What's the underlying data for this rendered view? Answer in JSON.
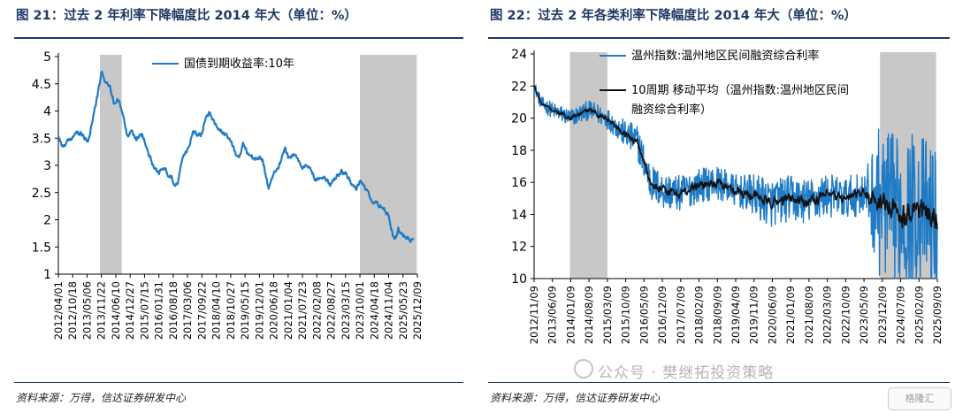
{
  "left_panel": {
    "title": "图 21：过去 2 年利率下降幅度比 2014 年大（单位：%）",
    "source": "资料来源：万得，信达证券研发中心"
  },
  "right_panel": {
    "title": "图 22：过去 2 年各类利率下降幅度比 2014 年大（单位：%）",
    "source": "资料来源：万得，信达证券研发中心"
  },
  "watermark": {
    "text": "公众号 · 樊继拓投资策略",
    "badge": "格隆汇"
  },
  "colors": {
    "series_blue": "#1f7bc6",
    "series_black": "#111111",
    "shade": "#c8c8c8",
    "title": "#1f3864"
  },
  "chart_data": [
    {
      "type": "line",
      "legend_position": "top-right",
      "xlabel": "",
      "ylabel": "",
      "ylim": [
        1,
        5
      ],
      "yticks": [
        "1",
        "1.5",
        "2",
        "2.5",
        "3",
        "3.5",
        "4",
        "4.5",
        "5"
      ],
      "xticks": [
        "2012/04/01",
        "2012/10/18",
        "2013/05/06",
        "2013/11/22",
        "2014/06/10",
        "2014/12/27",
        "2015/07/15",
        "2016/01/31",
        "2016/08/18",
        "2017/03/06",
        "2017/09/22",
        "2018/04/10",
        "2018/10/27",
        "2019/05/15",
        "2019/12/01",
        "2020/06/18",
        "2021/01/04",
        "2021/07/23",
        "2022/02/08",
        "2022/08/27",
        "2023/03/15",
        "2023/10/01",
        "2024/04/18",
        "2024/11/04",
        "2025/05/23",
        "2025/12/09"
      ],
      "x_range": [
        "2012-04-01",
        "2025-12-09"
      ],
      "shaded_periods": [
        [
          "2013-11-01",
          "2014-09-01"
        ],
        [
          "2023-10-01",
          "2025-12-01"
        ]
      ],
      "series": [
        {
          "name": "国债到期收益率:10年",
          "points": [
            [
              "2012-04-01",
              3.55
            ],
            [
              "2012-06-01",
              3.35
            ],
            [
              "2012-09-01",
              3.45
            ],
            [
              "2012-12-01",
              3.6
            ],
            [
              "2013-03-01",
              3.55
            ],
            [
              "2013-05-15",
              3.42
            ],
            [
              "2013-08-01",
              3.9
            ],
            [
              "2013-10-01",
              4.3
            ],
            [
              "2013-11-25",
              4.7
            ],
            [
              "2014-01-15",
              4.55
            ],
            [
              "2014-03-15",
              4.45
            ],
            [
              "2014-05-15",
              4.15
            ],
            [
              "2014-07-15",
              4.2
            ],
            [
              "2014-09-15",
              3.95
            ],
            [
              "2014-11-15",
              3.55
            ],
            [
              "2014-12-31",
              3.65
            ],
            [
              "2015-03-15",
              3.5
            ],
            [
              "2015-06-15",
              3.55
            ],
            [
              "2015-09-15",
              3.2
            ],
            [
              "2015-11-15",
              3.0
            ],
            [
              "2016-01-31",
              2.85
            ],
            [
              "2016-04-15",
              2.95
            ],
            [
              "2016-07-15",
              2.8
            ],
            [
              "2016-08-18",
              2.7
            ],
            [
              "2016-10-20",
              2.65
            ],
            [
              "2016-12-20",
              3.15
            ],
            [
              "2017-03-06",
              3.3
            ],
            [
              "2017-05-20",
              3.6
            ],
            [
              "2017-07-20",
              3.55
            ],
            [
              "2017-09-22",
              3.6
            ],
            [
              "2017-11-20",
              3.95
            ],
            [
              "2018-01-10",
              3.98
            ],
            [
              "2018-03-15",
              3.8
            ],
            [
              "2018-06-01",
              3.65
            ],
            [
              "2018-08-15",
              3.55
            ],
            [
              "2018-10-27",
              3.45
            ],
            [
              "2018-12-31",
              3.25
            ],
            [
              "2019-02-15",
              3.12
            ],
            [
              "2019-04-20",
              3.4
            ],
            [
              "2019-06-15",
              3.25
            ],
            [
              "2019-09-15",
              3.1
            ],
            [
              "2019-12-01",
              3.15
            ],
            [
              "2020-01-20",
              3.1
            ],
            [
              "2020-04-10",
              2.55
            ],
            [
              "2020-06-18",
              2.85
            ],
            [
              "2020-08-15",
              2.95
            ],
            [
              "2020-11-20",
              3.3
            ],
            [
              "2021-01-04",
              3.15
            ],
            [
              "2021-04-15",
              3.2
            ],
            [
              "2021-07-23",
              2.95
            ],
            [
              "2021-10-15",
              3.0
            ],
            [
              "2022-01-15",
              2.75
            ],
            [
              "2022-04-15",
              2.8
            ],
            [
              "2022-08-27",
              2.65
            ],
            [
              "2022-11-20",
              2.85
            ],
            [
              "2023-01-15",
              2.9
            ],
            [
              "2023-03-15",
              2.85
            ],
            [
              "2023-06-15",
              2.65
            ],
            [
              "2023-08-20",
              2.58
            ],
            [
              "2023-10-01",
              2.7
            ],
            [
              "2023-12-15",
              2.6
            ],
            [
              "2024-02-15",
              2.4
            ],
            [
              "2024-04-18",
              2.3
            ],
            [
              "2024-07-15",
              2.25
            ],
            [
              "2024-09-15",
              2.15
            ],
            [
              "2024-11-04",
              2.1
            ],
            [
              "2024-12-31",
              1.7
            ],
            [
              "2025-02-15",
              1.65
            ],
            [
              "2025-03-20",
              1.85
            ],
            [
              "2025-05-23",
              1.68
            ],
            [
              "2025-07-15",
              1.7
            ],
            [
              "2025-09-01",
              1.62
            ],
            [
              "2025-10-15",
              1.65
            ]
          ]
        }
      ]
    },
    {
      "type": "line",
      "legend_position": "top-right",
      "xlabel": "",
      "ylabel": "",
      "ylim": [
        10,
        24
      ],
      "yticks": [
        "10",
        "12",
        "14",
        "16",
        "18",
        "20",
        "22",
        "24"
      ],
      "xticks": [
        "2012/11/09",
        "2013/06/09",
        "2014/01/09",
        "2014/08/09",
        "2015/03/09",
        "2015/10/09",
        "2016/05/09",
        "2016/12/09",
        "2017/07/09",
        "2018/02/09",
        "2018/09/09",
        "2019/04/09",
        "2019/11/09",
        "2020/06/09",
        "2021/01/09",
        "2021/08/09",
        "2022/03/09",
        "2022/10/09",
        "2023/05/09",
        "2023/12/09",
        "2024/07/09",
        "2025/02/09",
        "2025/09/09"
      ],
      "x_range": [
        "2012-11-09",
        "2025-09-30"
      ],
      "shaded_periods": [
        [
          "2014-01-01",
          "2015-03-15"
        ],
        [
          "2023-12-01",
          "2025-09-15"
        ]
      ],
      "series": [
        {
          "name": "温州指数:温州地区民间融资综合利率",
          "style": "noisy",
          "points": [
            [
              "2012-11-09",
              22.0
            ],
            [
              "2013-02-01",
              20.9
            ],
            [
              "2013-06-09",
              20.5
            ],
            [
              "2014-01-09",
              20.0
            ],
            [
              "2014-08-09",
              20.5
            ],
            [
              "2015-03-09",
              20.0
            ],
            [
              "2015-10-09",
              19.0
            ],
            [
              "2016-03-01",
              18.5
            ],
            [
              "2016-08-01",
              16.0
            ],
            [
              "2016-12-09",
              15.5
            ],
            [
              "2017-07-09",
              15.3
            ],
            [
              "2018-02-09",
              15.8
            ],
            [
              "2018-09-09",
              16.0
            ],
            [
              "2019-04-09",
              15.5
            ],
            [
              "2019-11-09",
              15.2
            ],
            [
              "2020-06-09",
              14.7
            ],
            [
              "2021-01-09",
              15.0
            ],
            [
              "2021-08-09",
              14.8
            ],
            [
              "2022-03-09",
              15.2
            ],
            [
              "2022-10-09",
              15.0
            ],
            [
              "2023-05-09",
              15.3
            ],
            [
              "2023-12-09",
              14.8
            ],
            [
              "2024-07-09",
              14.0
            ],
            [
              "2025-02-09",
              14.5
            ],
            [
              "2025-09-09",
              13.5
            ]
          ],
          "amplitude_points": [
            [
              "2012-11-09",
              0.4
            ],
            [
              "2013-06-01",
              0.5
            ],
            [
              "2015-06-01",
              0.7
            ],
            [
              "2016-06-01",
              1.2
            ],
            [
              "2019-06-01",
              1.0
            ],
            [
              "2020-03-01",
              1.5
            ],
            [
              "2023-06-01",
              1.3
            ],
            [
              "2023-12-01",
              4.8
            ],
            [
              "2025-09-09",
              4.8
            ]
          ]
        },
        {
          "name": "10周期 移动平均（温州指数:温州地区民间融资综合利率）",
          "style": "smoothed",
          "points": [
            [
              "2012-11-09",
              22.0
            ],
            [
              "2013-02-01",
              20.9
            ],
            [
              "2013-06-09",
              20.5
            ],
            [
              "2014-01-09",
              20.0
            ],
            [
              "2014-08-09",
              20.5
            ],
            [
              "2015-03-09",
              20.0
            ],
            [
              "2015-10-09",
              19.0
            ],
            [
              "2016-03-01",
              18.5
            ],
            [
              "2016-08-01",
              16.0
            ],
            [
              "2016-12-09",
              15.5
            ],
            [
              "2017-07-09",
              15.3
            ],
            [
              "2018-02-09",
              15.8
            ],
            [
              "2018-09-09",
              16.0
            ],
            [
              "2019-04-09",
              15.5
            ],
            [
              "2019-11-09",
              15.2
            ],
            [
              "2020-06-09",
              14.7
            ],
            [
              "2021-01-09",
              15.0
            ],
            [
              "2021-08-09",
              14.8
            ],
            [
              "2022-03-09",
              15.2
            ],
            [
              "2022-10-09",
              15.0
            ],
            [
              "2023-05-09",
              15.3
            ],
            [
              "2023-12-09",
              14.8
            ],
            [
              "2024-07-09",
              14.0
            ],
            [
              "2025-02-09",
              14.5
            ],
            [
              "2025-09-09",
              13.5
            ]
          ],
          "amplitude_points": [
            [
              "2012-11-09",
              0.15
            ],
            [
              "2015-06-01",
              0.3
            ],
            [
              "2016-06-01",
              0.45
            ],
            [
              "2020-03-01",
              0.55
            ],
            [
              "2023-06-01",
              0.55
            ],
            [
              "2023-12-01",
              1.3
            ],
            [
              "2025-09-09",
              1.3
            ]
          ]
        }
      ]
    }
  ]
}
